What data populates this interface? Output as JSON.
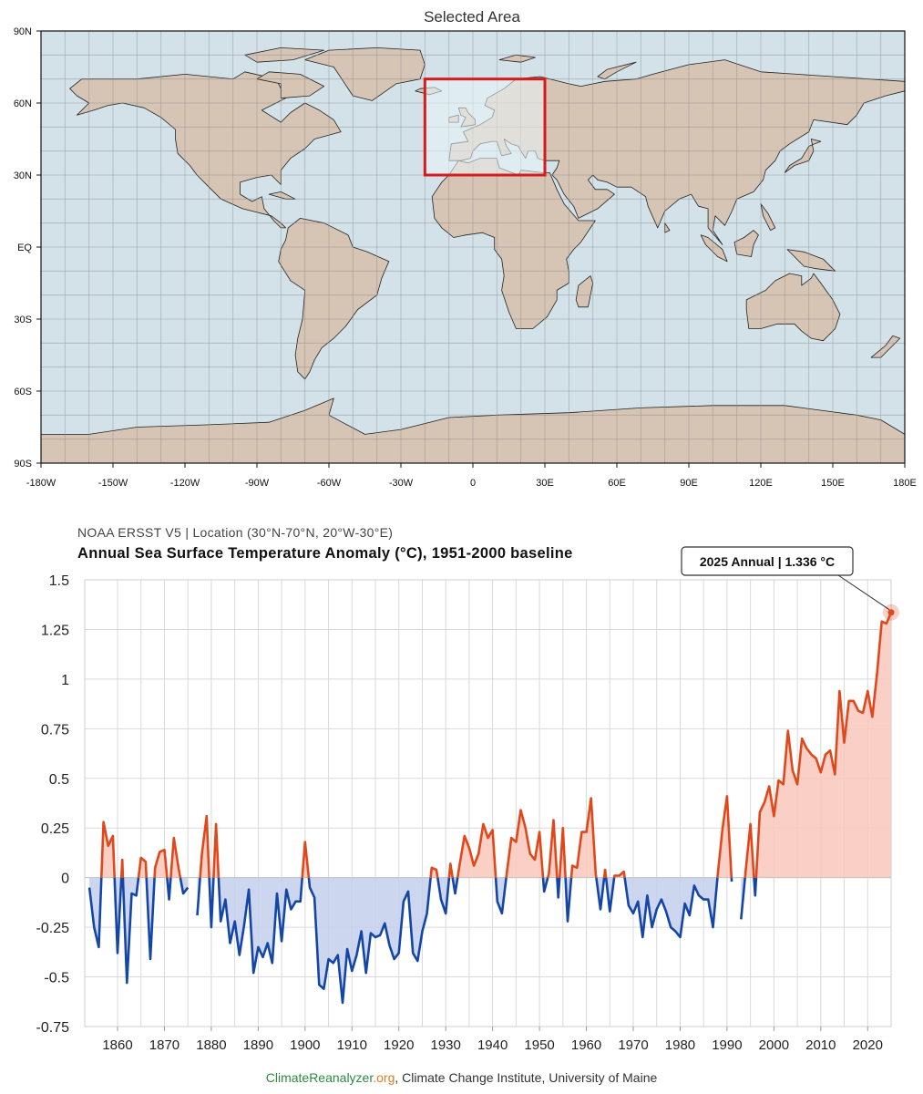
{
  "map": {
    "title": "Selected Area",
    "lat_labels": [
      "90N",
      "60N",
      "30N",
      "EQ",
      "30S",
      "60S",
      "90S"
    ],
    "lon_labels": [
      "-180W",
      "-150W",
      "-120W",
      "-90W",
      "-60W",
      "-30W",
      "0",
      "30E",
      "60E",
      "90E",
      "120E",
      "150E",
      "180E"
    ],
    "selection": {
      "lat_min": 30,
      "lat_max": 70,
      "lon_min": -20,
      "lon_max": 30
    },
    "colors": {
      "ocean": "#d2e2e8",
      "land": "#d6c4b4",
      "selection_border": "#d41c1c",
      "selection_fill": "#e9f6fa"
    }
  },
  "chart": {
    "subtitle": "NOAA ERSST V5 | Location (30°N-70°N, 20°W-30°E)",
    "title": "Annual Sea Surface Temperature Anomaly (°C), 1951-2000 baseline",
    "tooltip": "2025 Annual | 1.336 °C",
    "credit": {
      "site_a": "ClimateReanalyzer",
      "site_b": ".org",
      "rest": ", Climate Change Institute, University of Maine"
    },
    "colors": {
      "positive": "#e0481b",
      "negative": "#1446a8",
      "positive_fill": "#f9c8bc",
      "negative_fill": "#c4cfec"
    }
  },
  "chart_data": {
    "type": "area",
    "title": "Annual Sea Surface Temperature Anomaly (°C), 1951-2000 baseline",
    "xlabel": "",
    "ylabel": "",
    "xlim": [
      1853,
      2025
    ],
    "ylim": [
      -0.75,
      1.5
    ],
    "yticks": [
      -0.75,
      -0.5,
      -0.25,
      0,
      0.25,
      0.5,
      0.75,
      1,
      1.25,
      1.5
    ],
    "ytick_labels": [
      "-0.75",
      "-0.5",
      "-0.25",
      "0",
      "0.25",
      "0.5",
      "0.75",
      "1",
      "1.25",
      "1.5"
    ],
    "xticks": [
      1860,
      1870,
      1880,
      1890,
      1900,
      1910,
      1920,
      1930,
      1940,
      1950,
      1960,
      1970,
      1980,
      1990,
      2000,
      2010,
      2020
    ],
    "xtick_labels": [
      "1860",
      "1870",
      "1880",
      "1890",
      "1900",
      "1910",
      "1920",
      "1930",
      "1940",
      "1950",
      "1960",
      "1970",
      "1980",
      "1990",
      "2000",
      "2010",
      "2020"
    ],
    "baseline": 0,
    "highlight": {
      "year": 2025,
      "value": 1.336
    },
    "series": [
      {
        "name": "Annual anomaly",
        "x": [
          1854,
          1855,
          1856,
          1857,
          1858,
          1859,
          1860,
          1861,
          1862,
          1863,
          1864,
          1865,
          1866,
          1867,
          1868,
          1869,
          1870,
          1871,
          1872,
          1873,
          1874,
          1875,
          1876,
          1877,
          1878,
          1879,
          1880,
          1881,
          1882,
          1883,
          1884,
          1885,
          1886,
          1887,
          1888,
          1889,
          1890,
          1891,
          1892,
          1893,
          1894,
          1895,
          1896,
          1897,
          1898,
          1899,
          1900,
          1901,
          1902,
          1903,
          1904,
          1905,
          1906,
          1907,
          1908,
          1909,
          1910,
          1911,
          1912,
          1913,
          1914,
          1915,
          1916,
          1917,
          1918,
          1919,
          1920,
          1921,
          1922,
          1923,
          1924,
          1925,
          1926,
          1927,
          1928,
          1929,
          1930,
          1931,
          1932,
          1933,
          1934,
          1935,
          1936,
          1937,
          1938,
          1939,
          1940,
          1941,
          1942,
          1943,
          1944,
          1945,
          1946,
          1947,
          1948,
          1949,
          1950,
          1951,
          1952,
          1953,
          1954,
          1955,
          1956,
          1957,
          1958,
          1959,
          1960,
          1961,
          1962,
          1963,
          1964,
          1965,
          1966,
          1967,
          1968,
          1969,
          1970,
          1971,
          1972,
          1973,
          1974,
          1975,
          1976,
          1977,
          1978,
          1979,
          1980,
          1981,
          1982,
          1983,
          1984,
          1985,
          1986,
          1987,
          1988,
          1989,
          1990,
          1991,
          1992,
          1993,
          1994,
          1995,
          1996,
          1997,
          1998,
          1999,
          2000,
          2001,
          2002,
          2003,
          2004,
          2005,
          2006,
          2007,
          2008,
          2009,
          2010,
          2011,
          2012,
          2013,
          2014,
          2015,
          2016,
          2017,
          2018,
          2019,
          2020,
          2021,
          2022,
          2023,
          2024,
          2025
        ],
        "values": [
          -0.05,
          -0.25,
          -0.35,
          0.28,
          0.16,
          0.21,
          -0.38,
          0.09,
          -0.53,
          -0.08,
          -0.09,
          0.1,
          0.08,
          -0.41,
          0.05,
          0.13,
          0.14,
          -0.11,
          0.2,
          0.05,
          -0.08,
          -0.05,
          0.0,
          -0.19,
          0.12,
          0.31,
          -0.25,
          0.27,
          -0.22,
          -0.11,
          -0.33,
          -0.22,
          -0.39,
          -0.24,
          -0.06,
          -0.48,
          -0.35,
          -0.4,
          -0.33,
          -0.43,
          -0.08,
          -0.32,
          -0.06,
          -0.16,
          -0.12,
          -0.12,
          0.18,
          -0.05,
          -0.1,
          -0.54,
          -0.56,
          -0.41,
          -0.43,
          -0.39,
          -0.63,
          -0.36,
          -0.47,
          -0.39,
          -0.27,
          -0.48,
          -0.28,
          -0.3,
          -0.29,
          -0.23,
          -0.34,
          -0.41,
          -0.38,
          -0.12,
          -0.07,
          -0.38,
          -0.42,
          -0.27,
          -0.18,
          0.05,
          0.04,
          -0.11,
          -0.18,
          0.07,
          -0.08,
          0.07,
          0.21,
          0.15,
          0.06,
          0.12,
          0.27,
          0.2,
          0.24,
          -0.12,
          -0.18,
          0.02,
          0.2,
          0.18,
          0.34,
          0.25,
          0.12,
          0.09,
          0.23,
          -0.07,
          0.02,
          0.29,
          -0.1,
          0.25,
          -0.22,
          0.06,
          0.05,
          0.23,
          0.23,
          0.4,
          0.02,
          -0.16,
          0.04,
          -0.17,
          0.01,
          0.01,
          0.03,
          -0.14,
          -0.18,
          -0.12,
          -0.3,
          -0.09,
          -0.25,
          -0.16,
          -0.11,
          -0.17,
          -0.25,
          -0.27,
          -0.3,
          -0.13,
          -0.19,
          -0.04,
          -0.09,
          -0.11,
          -0.11,
          -0.25,
          0.01,
          0.24,
          0.41,
          -0.02,
          0.0,
          -0.21,
          0.04,
          0.27,
          -0.09,
          0.33,
          0.38,
          0.46,
          0.31,
          0.49,
          0.47,
          0.74,
          0.54,
          0.47,
          0.7,
          0.65,
          0.62,
          0.6,
          0.53,
          0.62,
          0.64,
          0.52,
          0.94,
          0.68,
          0.89,
          0.89,
          0.84,
          0.83,
          0.94,
          0.81,
          1.03,
          1.29,
          1.28,
          1.336
        ]
      }
    ]
  }
}
